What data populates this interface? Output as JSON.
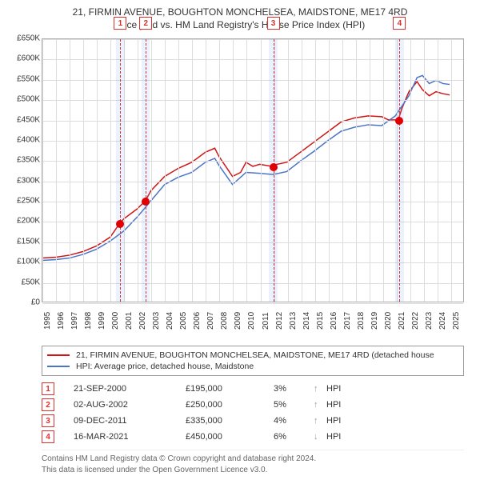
{
  "title": "21, FIRMIN AVENUE, BOUGHTON MONCHELSEA, MAIDSTONE, ME17 4RD",
  "subtitle": "Price paid vs. HM Land Registry's House Price Index (HPI)",
  "chart": {
    "type": "line",
    "x_range": [
      1995,
      2026
    ],
    "y_range": [
      0,
      650000
    ],
    "y_ticks": [
      0,
      50000,
      100000,
      150000,
      200000,
      250000,
      300000,
      350000,
      400000,
      450000,
      500000,
      550000,
      600000,
      650000
    ],
    "y_tick_labels": [
      "£0",
      "£50K",
      "£100K",
      "£150K",
      "£200K",
      "£250K",
      "£300K",
      "£350K",
      "£400K",
      "£450K",
      "£500K",
      "£550K",
      "£600K",
      "£650K"
    ],
    "x_ticks": [
      1995,
      1996,
      1997,
      1998,
      1999,
      2000,
      2001,
      2002,
      2003,
      2004,
      2005,
      2006,
      2007,
      2008,
      2009,
      2010,
      2011,
      2012,
      2013,
      2014,
      2015,
      2016,
      2017,
      2018,
      2019,
      2020,
      2021,
      2022,
      2023,
      2024,
      2025
    ],
    "grid_color": "#dddddd",
    "border_color": "#aaaaaa",
    "background_color": "#ffffff",
    "marker_band_color": "rgba(100,149,237,0.12)",
    "marker_line_color": "#e03030",
    "marker_tag_border": "#e03030",
    "marker_tag_text": "#e03030",
    "marker_dot_color": "#e00000",
    "series": [
      {
        "name": "property",
        "color": "#d01515",
        "line_width": 1.5,
        "data": [
          [
            1995,
            108000
          ],
          [
            1996,
            110000
          ],
          [
            1997,
            115000
          ],
          [
            1998,
            124000
          ],
          [
            1999,
            138000
          ],
          [
            2000,
            160000
          ],
          [
            2000.72,
            195000
          ],
          [
            2001,
            205000
          ],
          [
            2002,
            230000
          ],
          [
            2002.59,
            250000
          ],
          [
            2003,
            275000
          ],
          [
            2004,
            310000
          ],
          [
            2005,
            330000
          ],
          [
            2006,
            345000
          ],
          [
            2007,
            370000
          ],
          [
            2007.7,
            380000
          ],
          [
            2008,
            360000
          ],
          [
            2009,
            310000
          ],
          [
            2009.6,
            320000
          ],
          [
            2010,
            345000
          ],
          [
            2010.5,
            335000
          ],
          [
            2011,
            340000
          ],
          [
            2011.94,
            335000
          ],
          [
            2012,
            338000
          ],
          [
            2013,
            345000
          ],
          [
            2014,
            370000
          ],
          [
            2015,
            395000
          ],
          [
            2016,
            420000
          ],
          [
            2017,
            445000
          ],
          [
            2018,
            455000
          ],
          [
            2019,
            460000
          ],
          [
            2020,
            458000
          ],
          [
            2020.5,
            450000
          ],
          [
            2021.21,
            450000
          ],
          [
            2021.5,
            480000
          ],
          [
            2022,
            520000
          ],
          [
            2022.6,
            545000
          ],
          [
            2023,
            525000
          ],
          [
            2023.5,
            510000
          ],
          [
            2024,
            520000
          ],
          [
            2024.5,
            515000
          ],
          [
            2025,
            512000
          ]
        ]
      },
      {
        "name": "hpi",
        "color": "#4a74c9",
        "line_width": 1.5,
        "data": [
          [
            1995,
            102000
          ],
          [
            1996,
            104000
          ],
          [
            1997,
            108000
          ],
          [
            1998,
            117000
          ],
          [
            1999,
            130000
          ],
          [
            2000,
            150000
          ],
          [
            2001,
            175000
          ],
          [
            2002,
            210000
          ],
          [
            2003,
            250000
          ],
          [
            2004,
            290000
          ],
          [
            2005,
            308000
          ],
          [
            2006,
            320000
          ],
          [
            2007,
            345000
          ],
          [
            2007.7,
            355000
          ],
          [
            2008,
            338000
          ],
          [
            2009,
            290000
          ],
          [
            2010,
            320000
          ],
          [
            2011,
            318000
          ],
          [
            2012,
            315000
          ],
          [
            2013,
            322000
          ],
          [
            2014,
            348000
          ],
          [
            2015,
            372000
          ],
          [
            2016,
            398000
          ],
          [
            2017,
            422000
          ],
          [
            2018,
            432000
          ],
          [
            2019,
            438000
          ],
          [
            2020,
            436000
          ],
          [
            2021,
            460000
          ],
          [
            2022,
            510000
          ],
          [
            2022.6,
            555000
          ],
          [
            2023,
            560000
          ],
          [
            2023.5,
            540000
          ],
          [
            2024,
            548000
          ],
          [
            2024.5,
            540000
          ],
          [
            2025,
            538000
          ]
        ]
      }
    ],
    "markers": [
      {
        "n": "1",
        "x": 2000.72,
        "y": 195000,
        "band_width_years": 0.6
      },
      {
        "n": "2",
        "x": 2002.59,
        "y": 250000,
        "band_width_years": 0.6
      },
      {
        "n": "3",
        "x": 2011.94,
        "y": 335000,
        "band_width_years": 0.6
      },
      {
        "n": "4",
        "x": 2021.21,
        "y": 450000,
        "band_width_years": 0.6
      }
    ]
  },
  "legend": {
    "items": [
      {
        "color": "#d01515",
        "label": "21, FIRMIN AVENUE, BOUGHTON MONCHELSEA, MAIDSTONE, ME17 4RD (detached house"
      },
      {
        "color": "#4a74c9",
        "label": "HPI: Average price, detached house, Maidstone"
      }
    ]
  },
  "sales": [
    {
      "n": "1",
      "date": "21-SEP-2000",
      "price": "£195,000",
      "diff": "3%",
      "arrow": "↑",
      "arrow_color": "#999",
      "suffix": "HPI",
      "tag_color": "#e03030"
    },
    {
      "n": "2",
      "date": "02-AUG-2002",
      "price": "£250,000",
      "diff": "5%",
      "arrow": "↑",
      "arrow_color": "#999",
      "suffix": "HPI",
      "tag_color": "#e03030"
    },
    {
      "n": "3",
      "date": "09-DEC-2011",
      "price": "£335,000",
      "diff": "4%",
      "arrow": "↑",
      "arrow_color": "#999",
      "suffix": "HPI",
      "tag_color": "#e03030"
    },
    {
      "n": "4",
      "date": "16-MAR-2021",
      "price": "£450,000",
      "diff": "6%",
      "arrow": "↓",
      "arrow_color": "#999",
      "suffix": "HPI",
      "tag_color": "#e03030"
    }
  ],
  "footer": {
    "line1": "Contains HM Land Registry data © Crown copyright and database right 2024.",
    "line2": "This data is licensed under the Open Government Licence v3.0."
  }
}
